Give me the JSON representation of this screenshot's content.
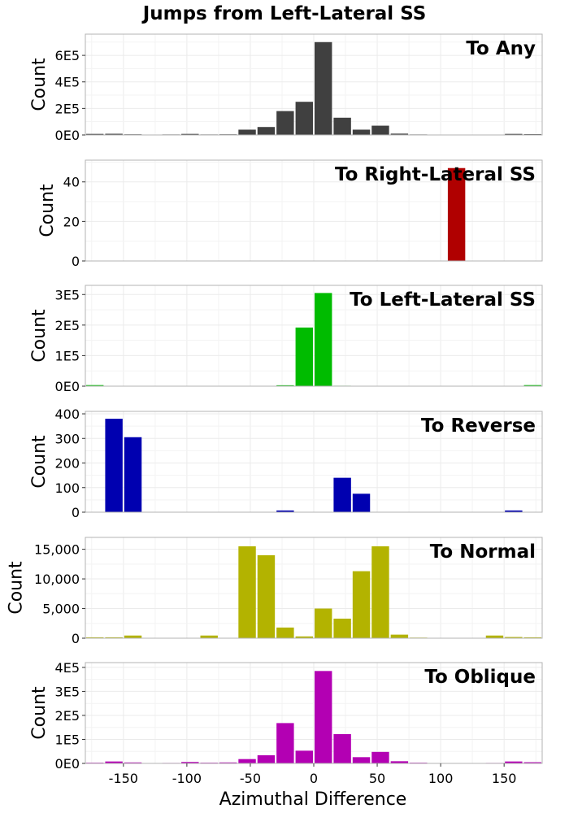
{
  "figure": {
    "title": "Jumps from Left-Lateral SS",
    "xlabel": "Azimuthal Difference",
    "x_ticks": [
      -150,
      -100,
      -50,
      0,
      50,
      100,
      150
    ],
    "xlim": [
      -180,
      180
    ],
    "bin_width": 15
  },
  "chart_data": [
    {
      "type": "bar",
      "panel_title": "To Any",
      "ylabel": "Count",
      "color": "#404040",
      "x": [
        -172.5,
        -157.5,
        -142.5,
        -127.5,
        -112.5,
        -97.5,
        -82.5,
        -67.5,
        -52.5,
        -37.5,
        -22.5,
        -7.5,
        7.5,
        22.5,
        37.5,
        52.5,
        67.5,
        82.5,
        97.5,
        112.5,
        127.5,
        142.5,
        157.5,
        172.5
      ],
      "values": [
        8000,
        9000,
        5000,
        2000,
        4000,
        8000,
        4000,
        5000,
        40000,
        60000,
        180000,
        250000,
        700000,
        130000,
        40000,
        70000,
        10000,
        4000,
        2000,
        2000,
        1000,
        2000,
        8000,
        6000
      ],
      "ylim": [
        0,
        760000
      ],
      "yticks": [
        0,
        200000,
        400000,
        600000
      ],
      "ytick_labels": [
        "0E0",
        "2E5",
        "4E5",
        "6E5"
      ]
    },
    {
      "type": "bar",
      "panel_title": "To Right-Lateral SS",
      "ylabel": "Count",
      "color": "#b00000",
      "x": [
        -172.5,
        -157.5,
        -142.5,
        -127.5,
        -112.5,
        -97.5,
        -82.5,
        -67.5,
        -52.5,
        -37.5,
        -22.5,
        -7.5,
        7.5,
        22.5,
        37.5,
        52.5,
        67.5,
        82.5,
        97.5,
        112.5,
        127.5,
        142.5,
        157.5,
        172.5
      ],
      "values": [
        0,
        0,
        0,
        0,
        0,
        0,
        0,
        0,
        0,
        0,
        0,
        0,
        0,
        0,
        0,
        0,
        0,
        0,
        0,
        47,
        0,
        0,
        0,
        0
      ],
      "ylim": [
        0,
        51
      ],
      "yticks": [
        0,
        20,
        40
      ],
      "ytick_labels": [
        "0",
        "20",
        "40"
      ]
    },
    {
      "type": "bar",
      "panel_title": "To Left-Lateral SS",
      "ylabel": "Count",
      "color": "#00bb00",
      "x": [
        -172.5,
        -157.5,
        -142.5,
        -127.5,
        -112.5,
        -97.5,
        -82.5,
        -67.5,
        -52.5,
        -37.5,
        -22.5,
        -7.5,
        7.5,
        22.5,
        37.5,
        52.5,
        67.5,
        82.5,
        97.5,
        112.5,
        127.5,
        142.5,
        157.5,
        172.5
      ],
      "values": [
        3500,
        1000,
        0,
        0,
        0,
        0,
        1000,
        0,
        1000,
        0,
        3000,
        192000,
        305000,
        1500,
        1000,
        0,
        0,
        0,
        0,
        1000,
        0,
        0,
        0,
        3500
      ],
      "ylim": [
        0,
        330000
      ],
      "yticks": [
        0,
        100000,
        200000,
        300000
      ],
      "ytick_labels": [
        "0E0",
        "1E5",
        "2E5",
        "3E5"
      ]
    },
    {
      "type": "bar",
      "panel_title": "To Reverse",
      "ylabel": "Count",
      "color": "#0000b0",
      "x": [
        -172.5,
        -157.5,
        -142.5,
        -127.5,
        -112.5,
        -97.5,
        -82.5,
        -67.5,
        -52.5,
        -37.5,
        -22.5,
        -7.5,
        7.5,
        22.5,
        37.5,
        52.5,
        67.5,
        82.5,
        97.5,
        112.5,
        127.5,
        142.5,
        157.5,
        172.5
      ],
      "values": [
        0,
        380,
        305,
        0,
        0,
        0,
        0,
        0,
        0,
        0,
        7,
        0,
        0,
        140,
        75,
        0,
        0,
        0,
        0,
        0,
        0,
        0,
        7,
        0
      ],
      "ylim": [
        0,
        410
      ],
      "yticks": [
        0,
        100,
        200,
        300,
        400
      ],
      "ytick_labels": [
        "0",
        "100",
        "200",
        "300",
        "400"
      ]
    },
    {
      "type": "bar",
      "panel_title": "To Normal",
      "ylabel": "Count",
      "color": "#b3b300",
      "x": [
        -172.5,
        -157.5,
        -142.5,
        -127.5,
        -112.5,
        -97.5,
        -82.5,
        -67.5,
        -52.5,
        -37.5,
        -22.5,
        -7.5,
        7.5,
        22.5,
        37.5,
        52.5,
        67.5,
        82.5,
        97.5,
        112.5,
        127.5,
        142.5,
        157.5,
        172.5
      ],
      "values": [
        150,
        150,
        450,
        50,
        50,
        50,
        450,
        50,
        15500,
        14000,
        1800,
        300,
        5000,
        3300,
        11300,
        15500,
        600,
        100,
        50,
        50,
        50,
        450,
        200,
        150
      ],
      "ylim": [
        0,
        17000
      ],
      "yticks": [
        0,
        5000,
        10000,
        15000
      ],
      "ytick_labels": [
        "0",
        "5,000",
        "10,000",
        "15,000"
      ]
    },
    {
      "type": "bar",
      "panel_title": "To Oblique",
      "ylabel": "Count",
      "color": "#b300b3",
      "x": [
        -172.5,
        -157.5,
        -142.5,
        -127.5,
        -112.5,
        -97.5,
        -82.5,
        -67.5,
        -52.5,
        -37.5,
        -22.5,
        -7.5,
        7.5,
        22.5,
        37.5,
        52.5,
        67.5,
        82.5,
        97.5,
        112.5,
        127.5,
        142.5,
        157.5,
        172.5
      ],
      "values": [
        3000,
        8000,
        4000,
        1000,
        2000,
        6000,
        3000,
        4000,
        18000,
        34000,
        168000,
        53000,
        385000,
        122000,
        26000,
        48000,
        9000,
        3000,
        1000,
        1000,
        1000,
        2000,
        8000,
        5000
      ],
      "ylim": [
        0,
        420000
      ],
      "yticks": [
        0,
        100000,
        200000,
        300000,
        400000
      ],
      "ytick_labels": [
        "0E0",
        "1E5",
        "2E5",
        "3E5",
        "4E5"
      ]
    }
  ]
}
